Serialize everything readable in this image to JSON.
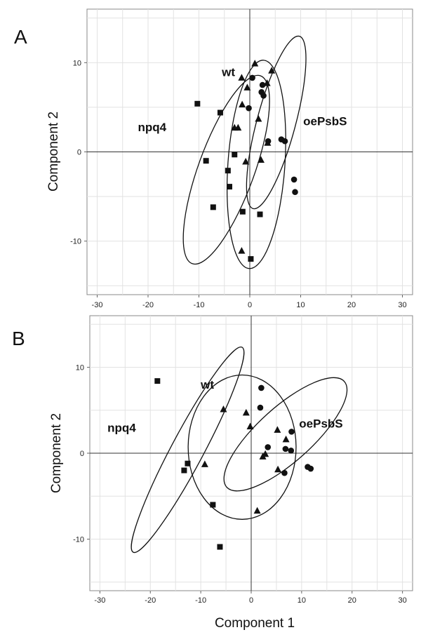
{
  "chart_data": [
    {
      "type": "scatter",
      "panel_label": "A",
      "ylabel": "Component 2",
      "xlabel": "",
      "xlim": [
        -32,
        32
      ],
      "ylim": [
        -16,
        16
      ],
      "xticks": [
        -30,
        -20,
        -10,
        0,
        10,
        20,
        30
      ],
      "yticks": [
        10,
        0,
        -10
      ],
      "grid": true,
      "group_labels": [
        {
          "text": "wt",
          "x": -5.5,
          "y": 8.5
        },
        {
          "text": "npq4",
          "x": -22,
          "y": 2.3
        },
        {
          "text": "oePsbS",
          "x": 10.5,
          "y": 3.0
        }
      ],
      "ellipses": [
        {
          "name": "npq4",
          "cx": -4.6,
          "cy": -2.0,
          "rx": 5.5,
          "ry": 11.2,
          "angle": 20
        },
        {
          "name": "wt",
          "cx": 1.3,
          "cy": -1.4,
          "rx": 5.6,
          "ry": 11.7,
          "angle": 4
        },
        {
          "name": "oePsbS",
          "cx": 5.2,
          "cy": 3.3,
          "rx": 3.8,
          "ry": 10.0,
          "angle": 15
        }
      ],
      "series": [
        {
          "name": "npq4",
          "marker": "square",
          "x": [
            -10.3,
            -5.8,
            -8.6,
            -3.0,
            -4.3,
            -4.0,
            -7.2,
            -1.4,
            2.0,
            0.2
          ],
          "y": [
            5.4,
            4.4,
            -1.0,
            -0.3,
            -2.1,
            -3.9,
            -6.2,
            -6.7,
            -7.0,
            -12.0
          ]
        },
        {
          "name": "wt",
          "marker": "triangle",
          "x": [
            1.0,
            -1.6,
            3.4,
            4.3,
            -0.5,
            -1.5,
            -3.0,
            -2.3,
            1.7,
            3.5,
            -0.8,
            2.2,
            -1.6
          ],
          "y": [
            9.9,
            8.3,
            7.7,
            9.1,
            7.2,
            5.3,
            2.7,
            2.7,
            3.7,
            1.0,
            -1.1,
            -0.9,
            -11.1
          ]
        },
        {
          "name": "oePsbS",
          "marker": "circle",
          "x": [
            0.5,
            2.5,
            2.3,
            2.7,
            -0.2,
            3.6,
            6.2,
            6.9,
            8.7,
            8.9
          ],
          "y": [
            8.3,
            7.5,
            6.7,
            6.3,
            4.9,
            1.2,
            1.4,
            1.2,
            -3.1,
            -4.5
          ]
        }
      ]
    },
    {
      "type": "scatter",
      "panel_label": "B",
      "ylabel": "Component 2",
      "xlabel": "Component 1",
      "xlim": [
        -32,
        32
      ],
      "ylim": [
        -16,
        16
      ],
      "xticks": [
        -30,
        -20,
        -10,
        0,
        10,
        20,
        30
      ],
      "yticks": [
        10,
        0,
        -10
      ],
      "grid": true,
      "group_labels": [
        {
          "text": "wt",
          "x": -10,
          "y": 7.5
        },
        {
          "text": "npq4",
          "x": -28.5,
          "y": 2.5
        },
        {
          "text": "oePsbS",
          "x": 9.5,
          "y": 3.0
        }
      ],
      "ellipses": [
        {
          "name": "npq4",
          "cx": -12.6,
          "cy": 0.4,
          "rx": 3.2,
          "ry": 13.5,
          "angle": 28
        },
        {
          "name": "wt",
          "cx": -1.8,
          "cy": 0.7,
          "rx": 10.7,
          "ry": 8.4,
          "angle": 0
        },
        {
          "name": "oePsbS",
          "cx": 6.8,
          "cy": 2.2,
          "rx": 5.4,
          "ry": 9.2,
          "angle": 48
        }
      ],
      "series": [
        {
          "name": "npq4",
          "marker": "square",
          "x": [
            -18.6,
            -12.6,
            -13.3,
            -7.6,
            -6.2
          ],
          "y": [
            8.4,
            -1.2,
            -2.0,
            -6.0,
            -10.9
          ]
        },
        {
          "name": "wt",
          "marker": "triangle",
          "x": [
            -5.5,
            -1.0,
            -0.2,
            2.8,
            5.2,
            6.9,
            5.3,
            2.3,
            -9.2,
            1.2
          ],
          "y": [
            5.1,
            4.7,
            3.1,
            -0.1,
            2.7,
            1.6,
            -1.9,
            -0.4,
            -1.3,
            -6.7
          ]
        },
        {
          "name": "oePsbS",
          "marker": "circle",
          "x": [
            2.0,
            1.8,
            3.3,
            6.8,
            8.0,
            7.9,
            6.6,
            11.2,
            11.8
          ],
          "y": [
            7.6,
            5.3,
            0.7,
            0.5,
            2.5,
            0.3,
            -2.3,
            -1.6,
            -1.8
          ]
        }
      ]
    }
  ]
}
